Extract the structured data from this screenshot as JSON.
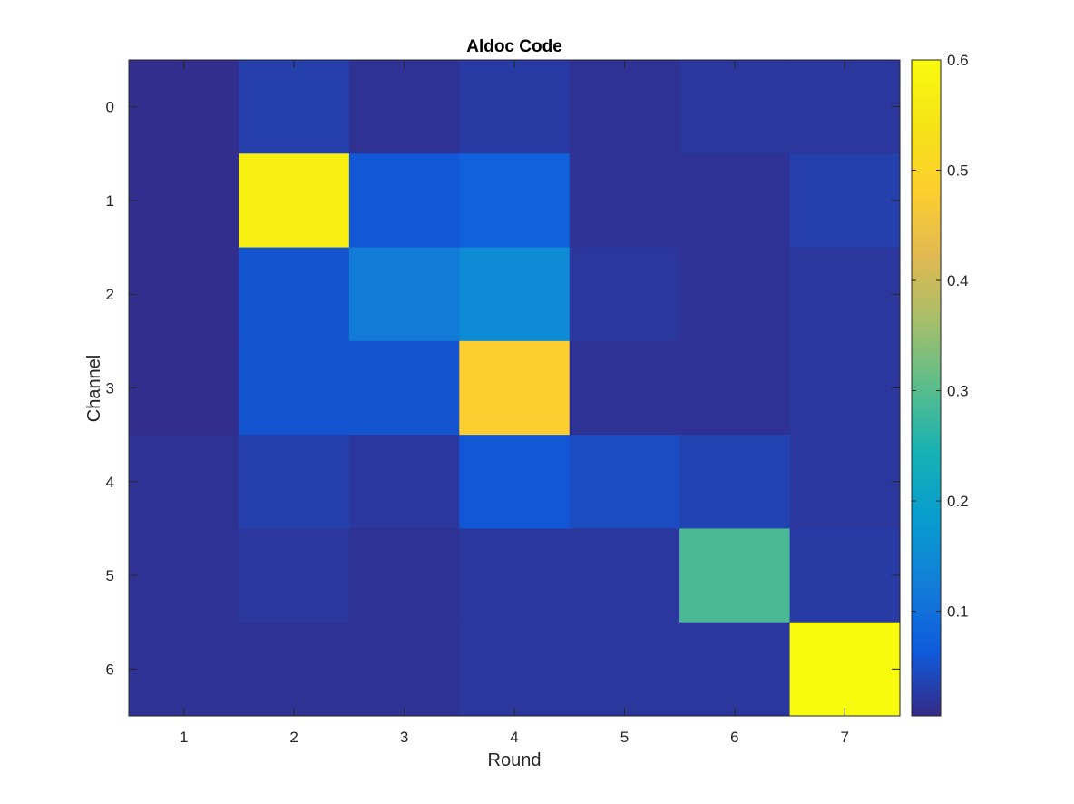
{
  "chart_data": {
    "type": "heatmap",
    "title": "Aldoc Code",
    "xlabel": "Round",
    "ylabel": "Channel",
    "x_categories": [
      "1",
      "2",
      "3",
      "4",
      "5",
      "6",
      "7"
    ],
    "y_categories": [
      "0",
      "1",
      "2",
      "3",
      "4",
      "5",
      "6"
    ],
    "values": [
      [
        0.01,
        0.03,
        0.015,
        0.025,
        0.015,
        0.02,
        0.02
      ],
      [
        0.01,
        0.57,
        0.06,
        0.075,
        0.015,
        0.015,
        0.03
      ],
      [
        0.01,
        0.055,
        0.12,
        0.15,
        0.02,
        0.015,
        0.02
      ],
      [
        0.01,
        0.055,
        0.055,
        0.48,
        0.015,
        0.015,
        0.02
      ],
      [
        0.015,
        0.03,
        0.02,
        0.06,
        0.045,
        0.035,
        0.02
      ],
      [
        0.015,
        0.02,
        0.015,
        0.02,
        0.02,
        0.29,
        0.025
      ],
      [
        0.015,
        0.015,
        0.015,
        0.02,
        0.02,
        0.02,
        0.6
      ]
    ],
    "colorbar": {
      "range": [
        0.005,
        0.6
      ],
      "ticks": [
        "0.1",
        "0.2",
        "0.3",
        "0.4",
        "0.5",
        "0.6"
      ],
      "tick_values": [
        0.1,
        0.2,
        0.3,
        0.4,
        0.5,
        0.6
      ],
      "colormap": "parula"
    },
    "grid": false,
    "legend": "colorbar-right"
  }
}
